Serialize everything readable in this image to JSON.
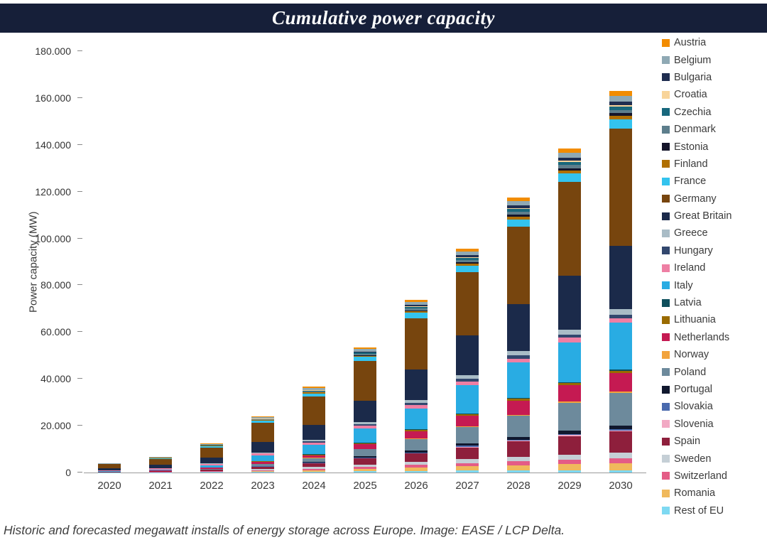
{
  "title": "Cumulative power capacity",
  "caption": "Historic and forecasted megawatt installs of energy storage across Europe. Image: EASE / LCP Delta.",
  "colors": {
    "title_bar_bg": "#161F39",
    "title_text": "#FFFFFF",
    "axis_text": "#3A3A3A",
    "caption_text": "#3F3F3F"
  },
  "chart_data": {
    "type": "bar",
    "stacked": true,
    "title": "Cumulative power capacity",
    "xlabel": "",
    "ylabel": "Power capacity (MW)",
    "units": "MW",
    "ylim": [
      0,
      180000
    ],
    "grid": false,
    "legend_position": "right",
    "stack_order": "last-legend-item-at-bottom (Rest of EU bottom, Austria top)",
    "yticks": [
      {
        "value": 0,
        "label": "0"
      },
      {
        "value": 20000,
        "label": "20.000"
      },
      {
        "value": 40000,
        "label": "40.000"
      },
      {
        "value": 60000,
        "label": "60.000"
      },
      {
        "value": 80000,
        "label": "80.000"
      },
      {
        "value": 100000,
        "label": "100.000"
      },
      {
        "value": 120000,
        "label": "120.000"
      },
      {
        "value": 140000,
        "label": "140.000"
      },
      {
        "value": 160000,
        "label": "160.000"
      },
      {
        "value": 180000,
        "label": "180.000"
      }
    ],
    "categories": [
      "2020",
      "2021",
      "2022",
      "2023",
      "2024",
      "2025",
      "2026",
      "2027",
      "2028",
      "2029",
      "2030"
    ],
    "values_note": "MW, estimated from bar segment heights",
    "series": [
      {
        "name": "Austria",
        "color": "#F28C00",
        "values": [
          50,
          100,
          200,
          400,
          600,
          800,
          1000,
          1300,
          1600,
          1800,
          2000
        ]
      },
      {
        "name": "Belgium",
        "color": "#8FA9B4",
        "values": [
          100,
          200,
          300,
          500,
          800,
          1100,
          1400,
          1700,
          2000,
          2200,
          2500
        ]
      },
      {
        "name": "Bulgaria",
        "color": "#1F2D50",
        "values": [
          0,
          0,
          50,
          100,
          200,
          350,
          550,
          800,
          1100,
          1300,
          1500
        ]
      },
      {
        "name": "Croatia",
        "color": "#F8D49A",
        "values": [
          0,
          0,
          0,
          50,
          100,
          150,
          200,
          300,
          400,
          450,
          500
        ]
      },
      {
        "name": "Czechia",
        "color": "#17677C",
        "values": [
          0,
          50,
          100,
          200,
          300,
          450,
          650,
          900,
          1200,
          1350,
          1500
        ]
      },
      {
        "name": "Denmark",
        "color": "#5D7E8C",
        "values": [
          50,
          100,
          150,
          250,
          400,
          550,
          750,
          950,
          1200,
          1350,
          1500
        ]
      },
      {
        "name": "Estonia",
        "color": "#15152A",
        "values": [
          0,
          0,
          50,
          100,
          200,
          300,
          450,
          600,
          800,
          900,
          1000
        ]
      },
      {
        "name": "Finland",
        "color": "#B06F00",
        "values": [
          50,
          100,
          150,
          250,
          400,
          550,
          750,
          950,
          1200,
          1350,
          1500
        ]
      },
      {
        "name": "France",
        "color": "#33C3EE",
        "values": [
          100,
          300,
          600,
          1000,
          1400,
          1800,
          2200,
          2700,
          3200,
          3600,
          4000
        ]
      },
      {
        "name": "Germany",
        "color": "#77450E",
        "values": [
          1800,
          2500,
          4500,
          8000,
          12000,
          17000,
          22000,
          27000,
          33000,
          40000,
          50000
        ]
      },
      {
        "name": "Great Britain",
        "color": "#1B2A4A",
        "values": [
          1000,
          1600,
          2400,
          4500,
          6500,
          9000,
          13000,
          17000,
          20000,
          23000,
          27000
        ]
      },
      {
        "name": "Greece",
        "color": "#A9BCC6",
        "values": [
          0,
          50,
          100,
          300,
          600,
          1000,
          1300,
          1600,
          1900,
          2200,
          2500
        ]
      },
      {
        "name": "Hungary",
        "color": "#32476E",
        "values": [
          0,
          50,
          100,
          250,
          450,
          650,
          850,
          1100,
          1300,
          1400,
          1500
        ]
      },
      {
        "name": "Ireland",
        "color": "#EE7FA4",
        "values": [
          200,
          400,
          600,
          800,
          1000,
          1200,
          1400,
          1600,
          1800,
          1900,
          2000
        ]
      },
      {
        "name": "Italy",
        "color": "#29ACE3",
        "values": [
          200,
          400,
          1000,
          2500,
          4000,
          6000,
          9000,
          12000,
          15000,
          17000,
          20000
        ]
      },
      {
        "name": "Latvia",
        "color": "#0E4F5C",
        "values": [
          0,
          0,
          0,
          50,
          100,
          150,
          200,
          300,
          400,
          450,
          500
        ]
      },
      {
        "name": "Lithuania",
        "color": "#9A6B00",
        "values": [
          0,
          0,
          50,
          150,
          300,
          450,
          600,
          750,
          900,
          950,
          1000
        ]
      },
      {
        "name": "Netherlands",
        "color": "#C51A52",
        "values": [
          100,
          200,
          400,
          800,
          1200,
          2000,
          3000,
          4500,
          6000,
          7000,
          8000
        ]
      },
      {
        "name": "Norway",
        "color": "#F2A33C",
        "values": [
          0,
          0,
          50,
          100,
          150,
          200,
          250,
          350,
          400,
          450,
          500
        ]
      },
      {
        "name": "Poland",
        "color": "#6D8A9C",
        "values": [
          50,
          100,
          300,
          800,
          1500,
          3000,
          5000,
          7000,
          9000,
          12000,
          14000
        ]
      },
      {
        "name": "Portugal",
        "color": "#10182E",
        "values": [
          0,
          50,
          100,
          250,
          400,
          600,
          800,
          1000,
          1200,
          1350,
          1500
        ]
      },
      {
        "name": "Slovakia",
        "color": "#4A6AAE",
        "values": [
          0,
          0,
          50,
          100,
          150,
          200,
          250,
          350,
          400,
          450,
          500
        ]
      },
      {
        "name": "Slovenia",
        "color": "#F2A9C4",
        "values": [
          0,
          0,
          0,
          50,
          100,
          150,
          200,
          300,
          400,
          450,
          500
        ]
      },
      {
        "name": "Spain",
        "color": "#8E1F3C",
        "values": [
          100,
          200,
          400,
          1000,
          1500,
          2500,
          3500,
          5000,
          6500,
          8000,
          9000
        ]
      },
      {
        "name": "Sweden",
        "color": "#C5CFD6",
        "values": [
          50,
          100,
          200,
          500,
          800,
          1100,
          1400,
          1700,
          2000,
          2200,
          2500
        ]
      },
      {
        "name": "Switzerland",
        "color": "#E45C86",
        "values": [
          50,
          100,
          200,
          400,
          600,
          800,
          1100,
          1400,
          1600,
          1800,
          2000
        ]
      },
      {
        "name": "Romania",
        "color": "#F0B95C",
        "values": [
          0,
          50,
          100,
          300,
          600,
          1000,
          1400,
          1800,
          2200,
          2600,
          3000
        ]
      },
      {
        "name": "Rest of EU",
        "color": "#7ED9F2",
        "values": [
          50,
          100,
          200,
          300,
          450,
          600,
          750,
          850,
          950,
          1000,
          1000
        ]
      }
    ]
  }
}
